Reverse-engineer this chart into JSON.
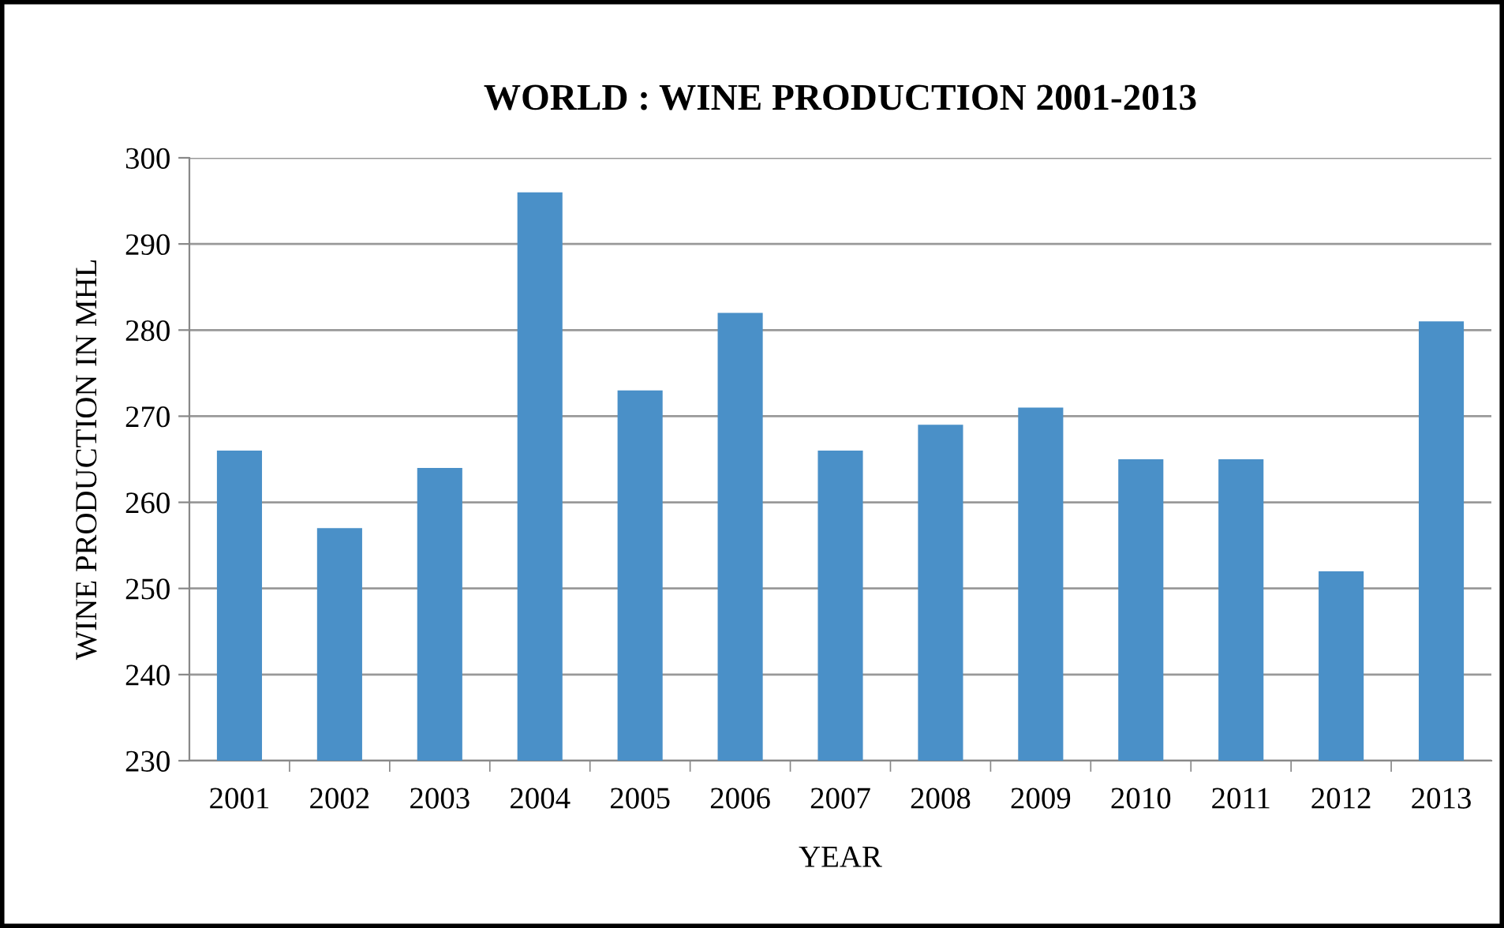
{
  "chart_data": {
    "type": "bar",
    "title": "WORLD : WINE PRODUCTION 2001-2013",
    "xlabel": "YEAR",
    "ylabel": "WINE PRODUCTION IN MHL",
    "categories": [
      "2001",
      "2002",
      "2003",
      "2004",
      "2005",
      "2006",
      "2007",
      "2008",
      "2009",
      "2010",
      "2011",
      "2012",
      "2013"
    ],
    "values": [
      266,
      257,
      264,
      296,
      273,
      282,
      266,
      269,
      271,
      265,
      265,
      252,
      281
    ],
    "color": "#4a90c8",
    "ylim": [
      230,
      300
    ],
    "yticks": [
      230,
      240,
      250,
      260,
      270,
      280,
      290,
      300
    ],
    "grid": "y"
  }
}
